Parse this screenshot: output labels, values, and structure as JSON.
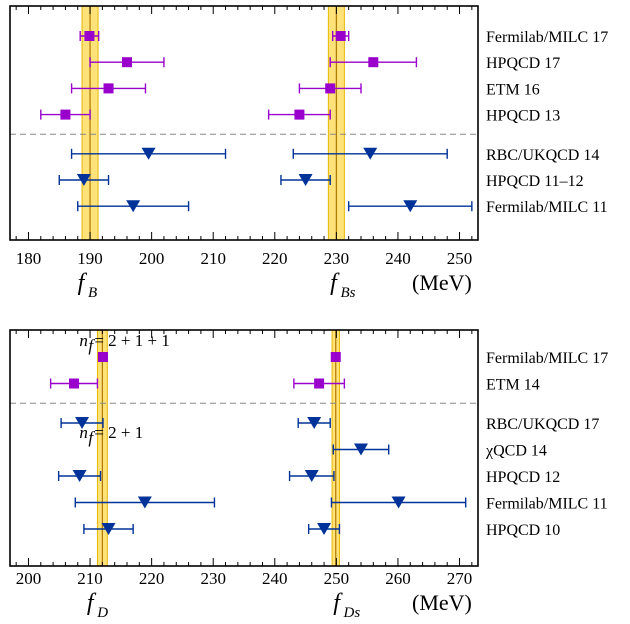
{
  "chart_data": [
    {
      "type": "errorbar",
      "unit": "(MeV)",
      "xlim": [
        177,
        253
      ],
      "ticks": [
        180,
        190,
        200,
        210,
        220,
        230,
        240,
        250
      ],
      "quantities": [
        {
          "symbol": "f",
          "sub": "B",
          "axis_center": 189.5
        },
        {
          "symbol": "f",
          "sub": "Bs",
          "axis_center": 230.5
        }
      ],
      "bands": [
        {
          "center": 190.0,
          "halfwidth": 1.3
        },
        {
          "center": 230.0,
          "halfwidth": 1.3
        }
      ],
      "series": [
        {
          "color": "#9900cc",
          "marker": "square"
        },
        {
          "color": "#003399",
          "marker": "triangle-down"
        }
      ],
      "labels": [
        "Fermilab/MILC 17",
        "HPQCD 17",
        "ETM 16",
        "HPQCD 13",
        "RBC/UKQCD 14",
        "HPQCD 11–12",
        "Fermilab/MILC 11"
      ],
      "rows": [
        {
          "label": 0,
          "series": 0,
          "points": [
            [
              189.9,
              188.4,
              191.4
            ],
            [
              230.7,
              229.4,
              232.0
            ]
          ]
        },
        {
          "label": 1,
          "series": 0,
          "points": [
            [
              196.0,
              190.0,
              202.0
            ],
            [
              236.0,
              229.0,
              243.0
            ]
          ]
        },
        {
          "label": 2,
          "series": 0,
          "points": [
            [
              193.0,
              187.0,
              199.0
            ],
            [
              229.0,
              224.0,
              234.0
            ]
          ]
        },
        {
          "label": 3,
          "series": 0,
          "points": [
            [
              186.0,
              182.0,
              190.0
            ],
            [
              224.0,
              219.0,
              229.0
            ]
          ]
        },
        {
          "label": 4,
          "series": 1,
          "points": [
            [
              199.5,
              187.0,
              212.0
            ],
            [
              235.5,
              223.0,
              248.0
            ]
          ]
        },
        {
          "label": 5,
          "series": 1,
          "points": [
            [
              189.0,
              185.0,
              193.0
            ],
            [
              225.0,
              221.0,
              229.0
            ]
          ]
        },
        {
          "label": 6,
          "series": 1,
          "points": [
            [
              197.0,
              188.0,
              206.0
            ],
            [
              242.0,
              232.0,
              252.0
            ]
          ]
        }
      ],
      "separator_after_row": 3,
      "nf_labels": []
    },
    {
      "type": "errorbar",
      "unit": "(MeV)",
      "xlim": [
        197,
        273
      ],
      "ticks": [
        200,
        210,
        220,
        230,
        240,
        250,
        260,
        270
      ],
      "quantities": [
        {
          "symbol": "f",
          "sub": "D",
          "axis_center": 211
        },
        {
          "symbol": "f",
          "sub": "Ds",
          "axis_center": 251
        }
      ],
      "bands": [
        {
          "center": 212.0,
          "halfwidth": 0.8
        },
        {
          "center": 249.9,
          "halfwidth": 0.6
        }
      ],
      "series": [
        {
          "color": "#9900cc",
          "marker": "square"
        },
        {
          "color": "#003399",
          "marker": "triangle-down"
        }
      ],
      "labels": [
        "Fermilab/MILC 17",
        "ETM 14",
        "RBC/UKQCD 17",
        "χQCD 14",
        "HPQCD 12",
        "Fermilab/MILC 11",
        "HPQCD 10"
      ],
      "rows": [
        {
          "label": 0,
          "series": 0,
          "points": [
            [
              212.1,
              211.4,
              212.8
            ],
            [
              249.9,
              249.3,
              250.5
            ]
          ]
        },
        {
          "label": 1,
          "series": 0,
          "points": [
            [
              207.4,
              203.6,
              211.2
            ],
            [
              247.2,
              243.1,
              251.3
            ]
          ]
        },
        {
          "label": 2,
          "series": 1,
          "points": [
            [
              208.7,
              205.3,
              212.1
            ],
            [
              246.4,
              243.8,
              249.0
            ]
          ]
        },
        {
          "label": 3,
          "series": 1,
          "points": [
            null,
            [
              254.0,
              249.5,
              258.5
            ]
          ]
        },
        {
          "label": 4,
          "series": 1,
          "points": [
            [
              208.3,
              204.9,
              211.7
            ],
            [
              246.0,
              242.4,
              249.6
            ]
          ]
        },
        {
          "label": 5,
          "series": 1,
          "points": [
            [
              218.9,
              207.6,
              230.2
            ],
            [
              260.1,
              249.2,
              271.0
            ]
          ]
        },
        {
          "label": 6,
          "series": 1,
          "points": [
            [
              213.0,
              209.0,
              217.0
            ],
            [
              248.0,
              245.5,
              250.5
            ]
          ]
        }
      ],
      "separator_after_row": 1,
      "nf_labels": [
        {
          "text_n": "n",
          "text_sub": "f",
          "text_rest": " = 2 + 1 + 1",
          "anchor_x": 218
        },
        {
          "text_n": "n",
          "text_sub": "f",
          "text_rest": " = 2 + 1",
          "anchor_x": 218
        }
      ]
    }
  ]
}
